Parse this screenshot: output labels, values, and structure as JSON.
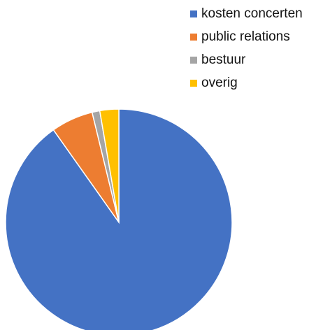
{
  "chart_data": {
    "type": "pie",
    "categories": [
      "kosten concerten",
      "public relations",
      "bestuur",
      "overig"
    ],
    "values": [
      90.2,
      6.0,
      1.1,
      2.7
    ],
    "colors": [
      "#4472c4",
      "#ed7d31",
      "#a5a5a5",
      "#ffc000"
    ],
    "start": "12 o'clock",
    "direction": "clockwise",
    "legend_position": "top-right"
  }
}
